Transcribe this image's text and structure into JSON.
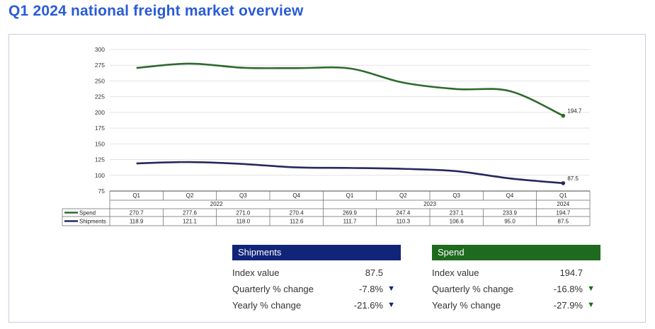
{
  "title": "Q1 2024 national freight market overview",
  "colors": {
    "spend": "#2d6a2d",
    "shipments": "#26285e",
    "title": "#2a5bd7"
  },
  "chart_data": {
    "type": "line",
    "categories": [
      "Q1",
      "Q2",
      "Q3",
      "Q4",
      "Q1",
      "Q2",
      "Q3",
      "Q4",
      "Q1"
    ],
    "years": [
      {
        "label": "2022",
        "span": 4
      },
      {
        "label": "2023",
        "span": 4
      },
      {
        "label": "2024",
        "span": 1
      }
    ],
    "series": [
      {
        "name": "Spend",
        "values": [
          270.7,
          277.6,
          271.0,
          270.4,
          269.9,
          247.4,
          237.1,
          233.9,
          194.7
        ]
      },
      {
        "name": "Shipments",
        "values": [
          118.9,
          121.1,
          118.0,
          112.6,
          111.7,
          110.3,
          106.6,
          95.0,
          87.5
        ]
      }
    ],
    "table_values": [
      [
        "270.7",
        "277.6",
        "271.0",
        "270.4",
        "269.9",
        "247.4",
        "237.1",
        "233.9",
        "194.7"
      ],
      [
        "118.9",
        "121.1",
        "118.0",
        "112.6",
        "111.7",
        "110.3",
        "106.6",
        "95.0",
        "87.5"
      ]
    ],
    "end_labels": [
      "194.7",
      "87.5"
    ],
    "yticks": [
      "300",
      "275",
      "250",
      "225",
      "200",
      "175",
      "150",
      "125",
      "100",
      "75"
    ],
    "ylim": [
      75,
      300
    ],
    "grid": true
  },
  "panels": [
    {
      "header": "Shipments",
      "color": "#10247a",
      "arrow_color": "#10247a",
      "rows": [
        {
          "label": "Index value",
          "value": "87.5",
          "arrow": ""
        },
        {
          "label": "Quarterly % change",
          "value": "-7.8%",
          "arrow": "▼"
        },
        {
          "label": "Yearly % change",
          "value": "-21.6%",
          "arrow": "▼"
        }
      ]
    },
    {
      "header": "Spend",
      "color": "#1e6a1e",
      "arrow_color": "#1e6a1e",
      "rows": [
        {
          "label": "Index value",
          "value": "194.7",
          "arrow": ""
        },
        {
          "label": "Quarterly % change",
          "value": "-16.8%",
          "arrow": "▼"
        },
        {
          "label": "Yearly % change",
          "value": "-27.9%",
          "arrow": "▼"
        }
      ]
    }
  ]
}
